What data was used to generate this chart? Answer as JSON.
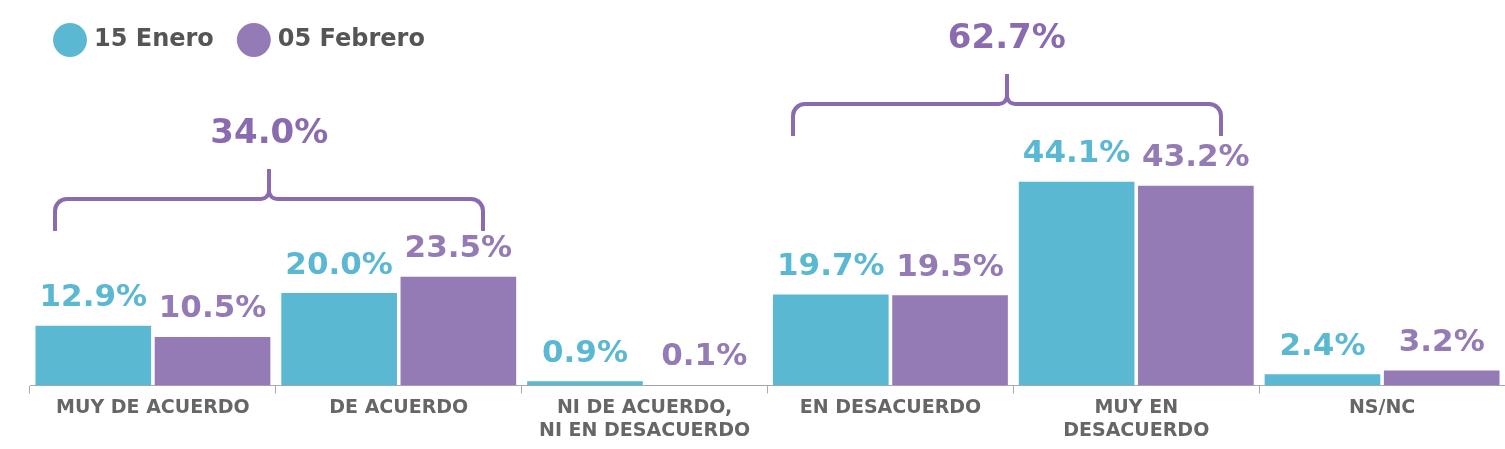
{
  "chart_data": {
    "type": "bar",
    "categories": [
      "MUY DE ACUERDO",
      "DE ACUERDO",
      "NI DE ACUERDO, NI EN DESACUERDO",
      "EN DESACUERDO",
      "MUY EN DESACUERDO",
      "NS/NC"
    ],
    "series": [
      {
        "name": "15 Enero",
        "color": "#5bb8d3",
        "values": [
          12.9,
          20.0,
          0.9,
          19.7,
          44.1,
          2.4
        ],
        "value_labels": [
          "12.9%",
          "20.0%",
          "0.9%",
          "19.7%",
          "44.1%",
          "2.4%"
        ]
      },
      {
        "name": "05 Febrero",
        "color": "#957bb5",
        "values": [
          10.5,
          23.5,
          0.1,
          19.5,
          43.2,
          3.2
        ],
        "value_labels": [
          "10.5%",
          "23.5%",
          "0.1%",
          "19.5%",
          "43.2%",
          "3.2%"
        ]
      }
    ],
    "annotations": [
      "34.0%",
      "62.7%"
    ],
    "legend": "top left",
    "grid": false
  }
}
